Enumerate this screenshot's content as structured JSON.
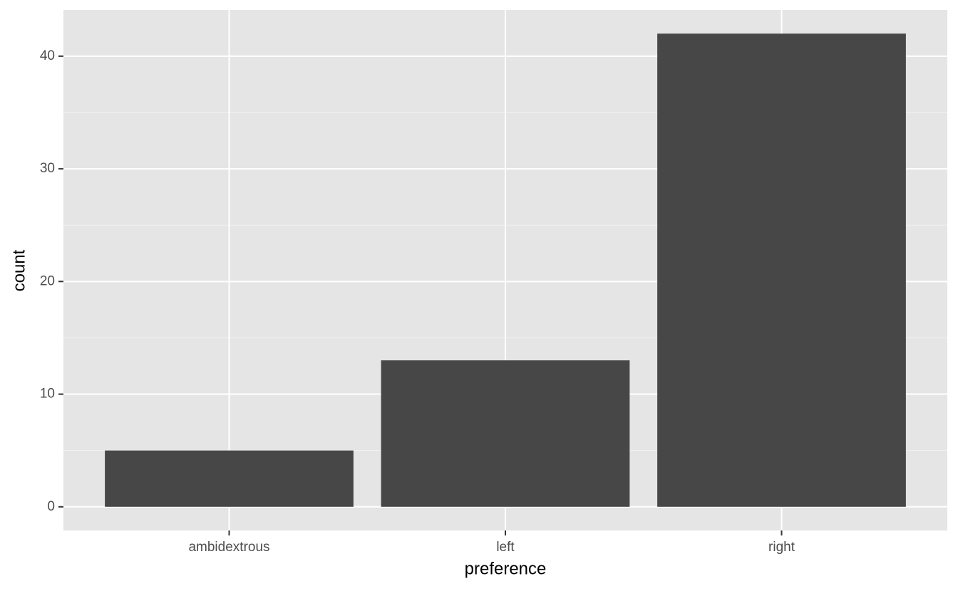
{
  "chart_data": {
    "type": "bar",
    "x_label": "preference",
    "y_label": "count",
    "categories": [
      "ambidextrous",
      "left",
      "right"
    ],
    "values": [
      5,
      13,
      42
    ],
    "color": "#474747",
    "ylim": [
      -2.1,
      44.1
    ],
    "yticks": [
      0,
      10,
      20,
      30,
      40
    ],
    "grid": true,
    "minor_grid": true
  }
}
